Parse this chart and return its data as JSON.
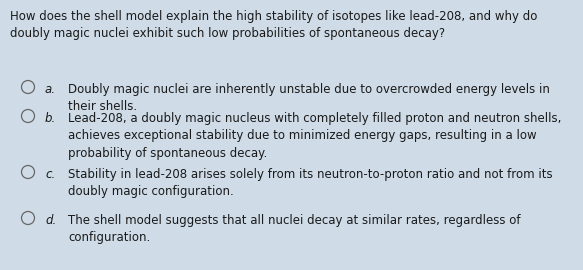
{
  "background_color": "#cfdce8",
  "question": "How does the shell model explain the high stability of isotopes like lead-208, and why do\ndoubly magic nuclei exhibit such low probabilities of spontaneous decay?",
  "options": [
    {
      "letter": "a.",
      "text": "Doubly magic nuclei are inherently unstable due to overcrowded energy levels in\ntheir shells."
    },
    {
      "letter": "b.",
      "text": "Lead-208, a doubly magic nucleus with completely filled proton and neutron shells,\nachieves exceptional stability due to minimized energy gaps, resulting in a low\nprobability of spontaneous decay."
    },
    {
      "letter": "c.",
      "text": "Stability in lead-208 arises solely from its neutron-to-proton ratio and not from its\ndoubly magic configuration."
    },
    {
      "letter": "d.",
      "text": "The shell model suggests that all nuclei decay at similar rates, regardless of\nconfiguration."
    }
  ],
  "question_fontsize": 8.5,
  "option_fontsize": 8.5,
  "text_color": "#1a1a1a",
  "circle_color": "#666666"
}
